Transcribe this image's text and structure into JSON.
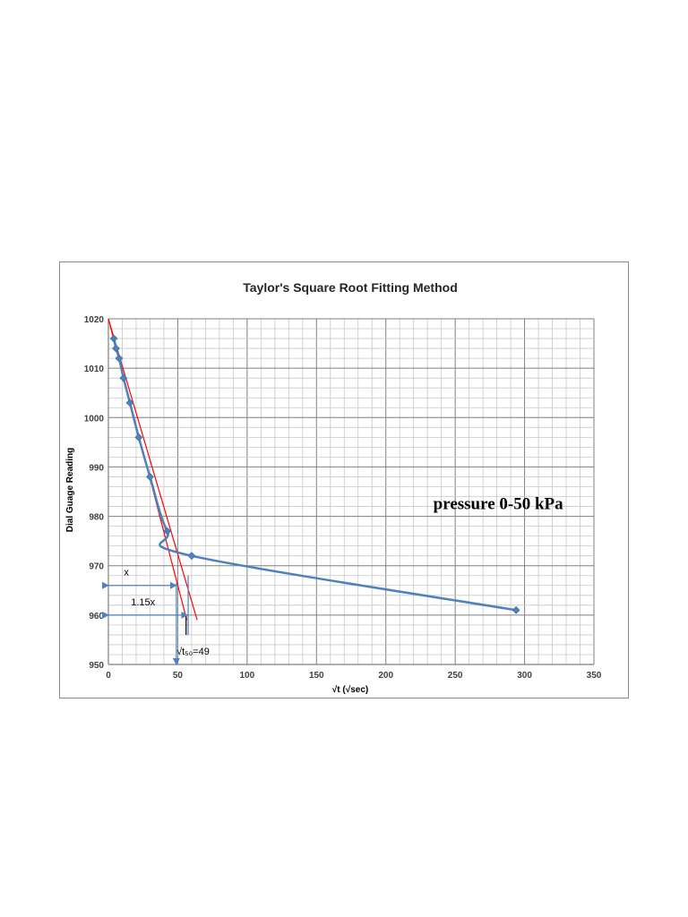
{
  "chart_data": {
    "type": "line",
    "title": "Taylor's Square Root Fitting Method",
    "xlabel": "√t (√sec)",
    "ylabel": "Dial Guage Reading",
    "xlim": [
      0,
      350
    ],
    "ylim": [
      950,
      1020
    ],
    "x_major_ticks": [
      0,
      50,
      100,
      150,
      200,
      250,
      300,
      350
    ],
    "y_major_ticks": [
      950,
      960,
      970,
      980,
      990,
      1000,
      1010,
      1020
    ],
    "x_minor_step": 10,
    "y_minor_step": 2,
    "grid": true,
    "legend": "none",
    "series": [
      {
        "color": "#4f81bd",
        "marker": "diamond",
        "x": [
          3.9,
          5.5,
          7.7,
          10.9,
          15.5,
          21.9,
          30.0,
          42.4,
          60.0,
          293.9
        ],
        "y": [
          1016,
          1014,
          1012,
          1008,
          1003,
          996,
          988,
          977,
          972,
          961
        ]
      }
    ],
    "fit_lines": [
      {
        "color": "#ff0000",
        "from": [
          0,
          1020
        ],
        "to": [
          56.5,
          959
        ]
      },
      {
        "color": "#ff0000",
        "from": [
          0,
          1020
        ],
        "to": [
          64,
          959
        ]
      }
    ],
    "guide_lines": [
      {
        "color": "#4f81bd",
        "from": [
          49,
          966.5
        ],
        "to": [
          49,
          950
        ],
        "arrow_end": true
      },
      {
        "color": "#4f81bd",
        "from": [
          57.5,
          968
        ],
        "to": [
          57.5,
          956
        ]
      },
      {
        "color": "#000000",
        "from": [
          56,
          960
        ],
        "to": [
          56,
          956
        ]
      }
    ],
    "dimension_arrows": [
      {
        "color": "#4f81bd",
        "from": [
          0,
          966
        ],
        "to": [
          49,
          966
        ],
        "label": "x",
        "label_at": [
          13,
          968
        ]
      },
      {
        "color": "#4f81bd",
        "from": [
          0,
          960
        ],
        "to": [
          57,
          960
        ],
        "label": "1.15x",
        "label_at": [
          25,
          962
        ]
      }
    ],
    "annotations": [
      {
        "text": "√t₅₀=49",
        "at": [
          61,
          952
        ],
        "style": "small"
      },
      {
        "text": "pressure 0-50 kPa",
        "at": [
          281,
          981.5
        ],
        "style": "large"
      }
    ]
  }
}
